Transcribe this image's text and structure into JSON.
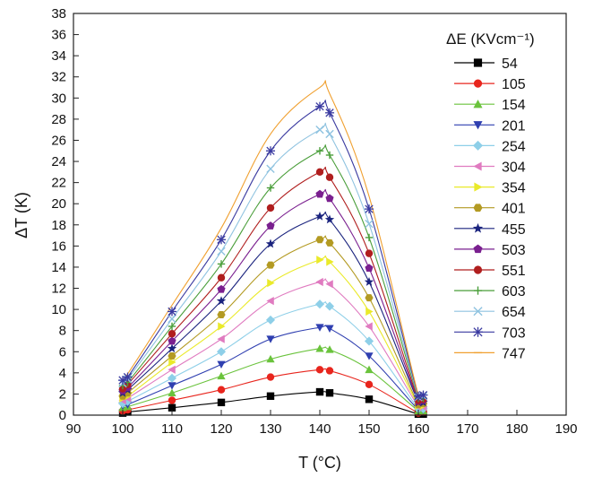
{
  "chart_data": {
    "type": "line",
    "title": "",
    "xlabel": "T (°C)",
    "ylabel": "ΔT (K)",
    "xlim": [
      90,
      190
    ],
    "ylim": [
      0,
      38
    ],
    "xticks": [
      90,
      100,
      110,
      120,
      130,
      140,
      150,
      160,
      170,
      180,
      190
    ],
    "yticks": [
      0,
      2,
      4,
      6,
      8,
      10,
      12,
      14,
      16,
      18,
      20,
      22,
      24,
      26,
      28,
      30,
      32,
      34,
      36,
      38
    ],
    "x": [
      100,
      101,
      110,
      120,
      130,
      140,
      142,
      150,
      160,
      161
    ],
    "legend_title": "ΔE (KVcm⁻¹)",
    "legend_position": "right",
    "grid": false,
    "series": [
      {
        "name": "54",
        "marker": "square",
        "color": "#000000",
        "values": [
          0.2,
          0.3,
          0.7,
          1.2,
          1.8,
          2.2,
          2.1,
          1.5,
          0.1,
          0.1
        ]
      },
      {
        "name": "105",
        "marker": "circle",
        "color": "#e8251d",
        "values": [
          0.4,
          0.5,
          1.4,
          2.4,
          3.6,
          4.3,
          4.2,
          2.9,
          0.2,
          0.3
        ]
      },
      {
        "name": "154",
        "marker": "triangle-up",
        "color": "#6ac33c",
        "values": [
          0.7,
          0.8,
          2.1,
          3.7,
          5.3,
          6.3,
          6.2,
          4.3,
          0.4,
          0.4
        ]
      },
      {
        "name": "201",
        "marker": "triangle-down",
        "color": "#2f3fb0",
        "values": [
          0.9,
          1.0,
          2.8,
          4.8,
          7.2,
          8.3,
          8.2,
          5.6,
          0.5,
          0.5
        ]
      },
      {
        "name": "254",
        "marker": "diamond",
        "color": "#8ecfe8",
        "values": [
          1.1,
          1.3,
          3.5,
          6.0,
          9.0,
          10.5,
          10.3,
          7.0,
          0.6,
          0.6
        ]
      },
      {
        "name": "304",
        "marker": "triangle-left",
        "color": "#e07bc0",
        "values": [
          1.4,
          1.6,
          4.3,
          7.2,
          10.8,
          12.6,
          12.4,
          8.4,
          0.8,
          0.8
        ]
      },
      {
        "name": "354",
        "marker": "triangle-right",
        "color": "#eaea2a",
        "values": [
          1.6,
          1.8,
          5.0,
          8.4,
          12.5,
          14.7,
          14.5,
          9.8,
          0.9,
          0.9
        ]
      },
      {
        "name": "401",
        "marker": "hexagon",
        "color": "#b39a22",
        "values": [
          1.8,
          2.1,
          5.6,
          9.5,
          14.2,
          16.6,
          16.3,
          11.1,
          1.0,
          1.1
        ]
      },
      {
        "name": "455",
        "marker": "star",
        "color": "#1a237e",
        "values": [
          2.1,
          2.4,
          6.3,
          10.8,
          16.2,
          18.8,
          18.5,
          12.6,
          1.2,
          1.2
        ]
      },
      {
        "name": "503",
        "marker": "pentagon",
        "color": "#7a1f8f",
        "values": [
          2.3,
          2.6,
          7.0,
          11.9,
          17.9,
          20.9,
          20.5,
          13.9,
          1.3,
          1.4
        ]
      },
      {
        "name": "551",
        "marker": "circle",
        "color": "#b01e1e",
        "values": [
          2.5,
          2.9,
          7.7,
          13.0,
          19.6,
          23.0,
          22.5,
          15.3,
          1.4,
          1.5
        ]
      },
      {
        "name": "603",
        "marker": "plus",
        "color": "#4a9e3a",
        "values": [
          2.8,
          3.1,
          8.4,
          14.3,
          21.5,
          25.0,
          24.6,
          16.8,
          1.6,
          1.6
        ]
      },
      {
        "name": "654",
        "marker": "x",
        "color": "#8fc3e0",
        "values": [
          3.0,
          3.4,
          9.1,
          15.5,
          23.3,
          27.0,
          26.6,
          18.1,
          1.7,
          1.8
        ]
      },
      {
        "name": "703",
        "marker": "asterisk",
        "color": "#3a3aa0",
        "values": [
          3.3,
          3.6,
          9.8,
          16.6,
          25.0,
          29.2,
          28.6,
          19.5,
          1.8,
          1.9
        ]
      },
      {
        "name": "747",
        "marker": "dash",
        "color": "#f0a030",
        "values": [
          3.5,
          3.9,
          10.4,
          17.7,
          26.6,
          31.0,
          30.4,
          20.7,
          1.9,
          2.0
        ]
      }
    ]
  }
}
